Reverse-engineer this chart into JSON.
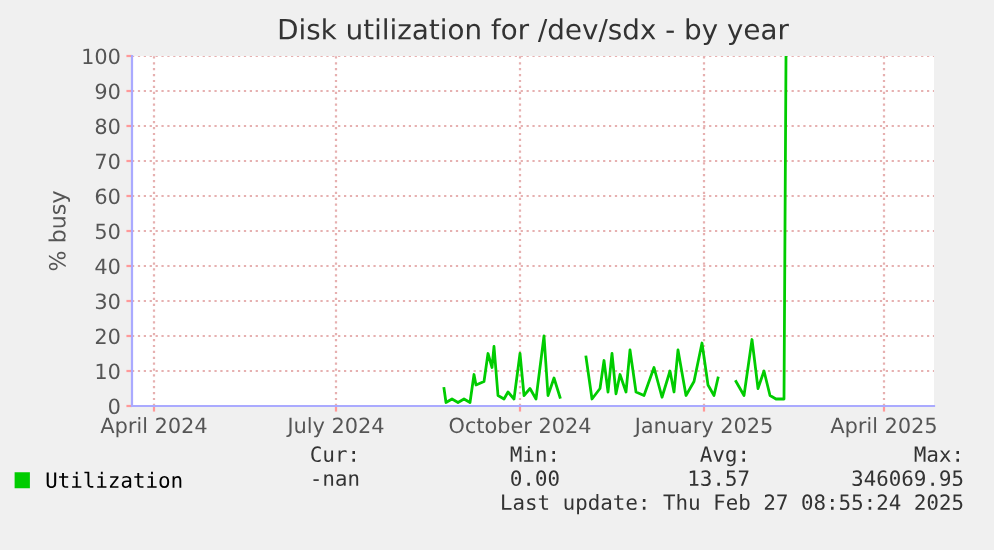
{
  "chart_data": {
    "type": "line",
    "title": "Disk utilization for /dev/sdx - by year",
    "ylabel": "% busy",
    "x": [
      "2024-08-24",
      "2024-08-25",
      "2024-08-28",
      "2024-08-31",
      "2024-09-03",
      "2024-09-06",
      "2024-09-08",
      "2024-09-09",
      "2024-09-13",
      "2024-09-15",
      "2024-09-17",
      "2024-09-18",
      "2024-09-20",
      "2024-09-23",
      "2024-09-25",
      "2024-09-28",
      "2024-10-01",
      "2024-10-03",
      "2024-10-06",
      "2024-10-09",
      "2024-10-13",
      "2024-10-15",
      "2024-10-18",
      "2024-10-21",
      "2024-10-27",
      "2024-11-03",
      "2024-11-06",
      "2024-11-10",
      "2024-11-12",
      "2024-11-14",
      "2024-11-16",
      "2024-11-18",
      "2024-11-20",
      "2024-11-23",
      "2024-11-25",
      "2024-11-28",
      "2024-12-02",
      "2024-12-07",
      "2024-12-11",
      "2024-12-15",
      "2024-12-17",
      "2024-12-19",
      "2024-12-23",
      "2024-12-27",
      "2024-12-31",
      "2025-01-03",
      "2025-01-06",
      "2025-01-08",
      "2025-01-12",
      "2025-01-17",
      "2025-01-21",
      "2025-01-25",
      "2025-01-28",
      "2025-01-31",
      "2025-02-03",
      "2025-02-06",
      "2025-02-10",
      "2025-02-11"
    ],
    "series": [
      {
        "name": "Utilization",
        "color": "#00cc00",
        "values": [
          5,
          1,
          2,
          1,
          2,
          1,
          9,
          6,
          7,
          15,
          11,
          17,
          3,
          2,
          4,
          2,
          15,
          3,
          5,
          2,
          20,
          3,
          8,
          2.5,
          null,
          14,
          2,
          5,
          13,
          4,
          15,
          3.5,
          9,
          4,
          16,
          4,
          3,
          11,
          2.5,
          10,
          4,
          16,
          3,
          7,
          18,
          6,
          3,
          8,
          null,
          7,
          3,
          19,
          5,
          10,
          3,
          2,
          2,
          100
        ]
      }
    ],
    "xlim": [
      "2024-03-21",
      "2025-04-26"
    ],
    "xticks": [
      {
        "value": "2024-04-01",
        "label": "April 2024"
      },
      {
        "value": "2024-07-01",
        "label": "July 2024"
      },
      {
        "value": "2024-10-01",
        "label": "October 2024"
      },
      {
        "value": "2025-01-01",
        "label": "January 2025"
      },
      {
        "value": "2025-04-01",
        "label": "April 2025"
      }
    ],
    "ylim": [
      0,
      100
    ],
    "yticks": [
      0,
      10,
      20,
      30,
      40,
      50,
      60,
      70,
      80,
      90,
      100
    ],
    "grid": true,
    "legend": "bottom left",
    "marker": "none",
    "line_style": "solid",
    "annotations": [
      "Cur:",
      "-nan",
      "Min:",
      "0.00",
      "Avg:",
      "13.57",
      "Max:",
      "346069.95",
      "Last update: Thu Feb 27 08:55:24 2025"
    ]
  }
}
